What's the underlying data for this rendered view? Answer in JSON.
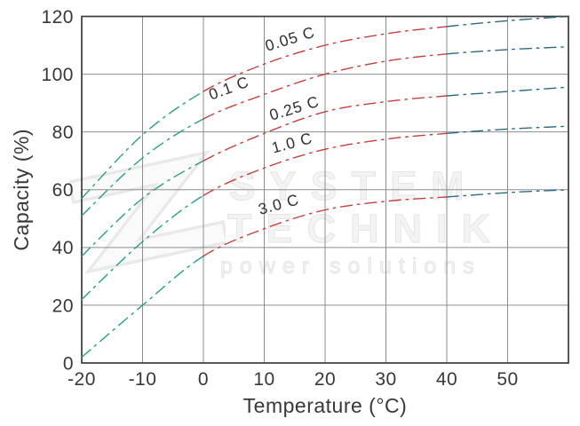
{
  "watermark": {
    "line1": "SYSTEM",
    "line2": "TECHNIK",
    "line3": "power solutions"
  },
  "chart_data": {
    "type": "line",
    "title": "",
    "xlabel": "Temperature (°C)",
    "ylabel": "Capacity (%)",
    "x": [
      -20,
      -10,
      0,
      10,
      20,
      30,
      40,
      50,
      60
    ],
    "xticks": [
      -20,
      -10,
      0,
      10,
      20,
      30,
      40,
      50
    ],
    "yticks": [
      0,
      20,
      40,
      60,
      80,
      100,
      120
    ],
    "xlim": [
      -20,
      60
    ],
    "ylim": [
      0,
      120
    ],
    "grid": true,
    "line_style": "dash-dot",
    "legend_position": "inline-labels",
    "segment_colors": {
      "cold": "#2e9c80",
      "mid": "#c2403f",
      "hot": "#2f6880",
      "cold_range": [
        -20,
        0
      ],
      "mid_range": [
        0,
        40
      ],
      "hot_range": [
        40,
        60
      ]
    },
    "series": [
      {
        "name": "0.05 C",
        "values": [
          57,
          79,
          94,
          103.5,
          110,
          114,
          116.5,
          118.5,
          120
        ],
        "label": {
          "text": "0.05 C",
          "t": 14.5,
          "cap": 110.5,
          "angle": -17
        }
      },
      {
        "name": "0.1 C",
        "values": [
          51,
          71,
          84.5,
          93,
          100,
          104.5,
          107,
          108.5,
          109.5
        ],
        "label": {
          "text": "0.1 C",
          "t": 4.5,
          "cap": 93.5,
          "angle": -20
        }
      },
      {
        "name": "0.25 C",
        "values": [
          37,
          57,
          70,
          79.5,
          87,
          90.5,
          92.5,
          94,
          95.5
        ],
        "label": {
          "text": "0.25 C",
          "t": 15.2,
          "cap": 86.5,
          "angle": -17
        }
      },
      {
        "name": "1.0 C",
        "values": [
          22,
          42,
          58,
          67.5,
          74,
          77.5,
          79.5,
          81,
          82
        ],
        "label": {
          "text": "1.0 C",
          "t": 14.8,
          "cap": 74.5,
          "angle": -15
        }
      },
      {
        "name": "3.0 C",
        "values": [
          2,
          20,
          37,
          46.5,
          53,
          56,
          57.5,
          59,
          60
        ],
        "label": {
          "text": "3.0 C",
          "t": 12.6,
          "cap": 53.2,
          "angle": -15
        }
      }
    ],
    "style": {
      "grid_color": "#8d8d8d",
      "frame_color": "#3b3b3b",
      "text_color": "#383838",
      "dash_pattern": "13 6 2.5 6"
    }
  }
}
